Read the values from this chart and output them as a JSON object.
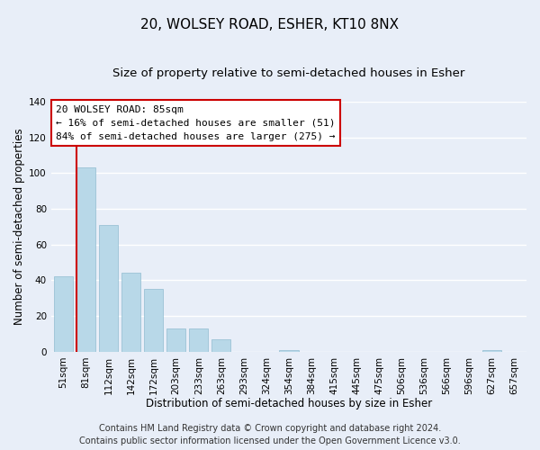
{
  "title": "20, WOLSEY ROAD, ESHER, KT10 8NX",
  "subtitle": "Size of property relative to semi-detached houses in Esher",
  "xlabel": "Distribution of semi-detached houses by size in Esher",
  "ylabel": "Number of semi-detached properties",
  "bar_labels": [
    "51sqm",
    "81sqm",
    "112sqm",
    "142sqm",
    "172sqm",
    "203sqm",
    "233sqm",
    "263sqm",
    "293sqm",
    "324sqm",
    "354sqm",
    "384sqm",
    "415sqm",
    "445sqm",
    "475sqm",
    "506sqm",
    "536sqm",
    "566sqm",
    "596sqm",
    "627sqm",
    "657sqm"
  ],
  "bar_heights": [
    42,
    103,
    71,
    44,
    35,
    13,
    13,
    7,
    0,
    0,
    1,
    0,
    0,
    0,
    0,
    0,
    0,
    0,
    0,
    1,
    0
  ],
  "bar_color": "#b8d8e8",
  "bar_edge_color": "#90bcd0",
  "marker_line_index": 1,
  "marker_line_color": "#cc0000",
  "ylim": [
    0,
    140
  ],
  "yticks": [
    0,
    20,
    40,
    60,
    80,
    100,
    120,
    140
  ],
  "annotation_title": "20 WOLSEY ROAD: 85sqm",
  "annotation_line1": "← 16% of semi-detached houses are smaller (51)",
  "annotation_line2": "84% of semi-detached houses are larger (275) →",
  "annotation_box_facecolor": "#ffffff",
  "annotation_box_edgecolor": "#cc0000",
  "footer_line1": "Contains HM Land Registry data © Crown copyright and database right 2024.",
  "footer_line2": "Contains public sector information licensed under the Open Government Licence v3.0.",
  "background_color": "#e8eef8",
  "plot_background_color": "#e8eef8",
  "grid_color": "#ffffff",
  "title_fontsize": 11,
  "subtitle_fontsize": 9.5,
  "axis_label_fontsize": 8.5,
  "tick_fontsize": 7.5,
  "annotation_fontsize": 8,
  "footer_fontsize": 7
}
